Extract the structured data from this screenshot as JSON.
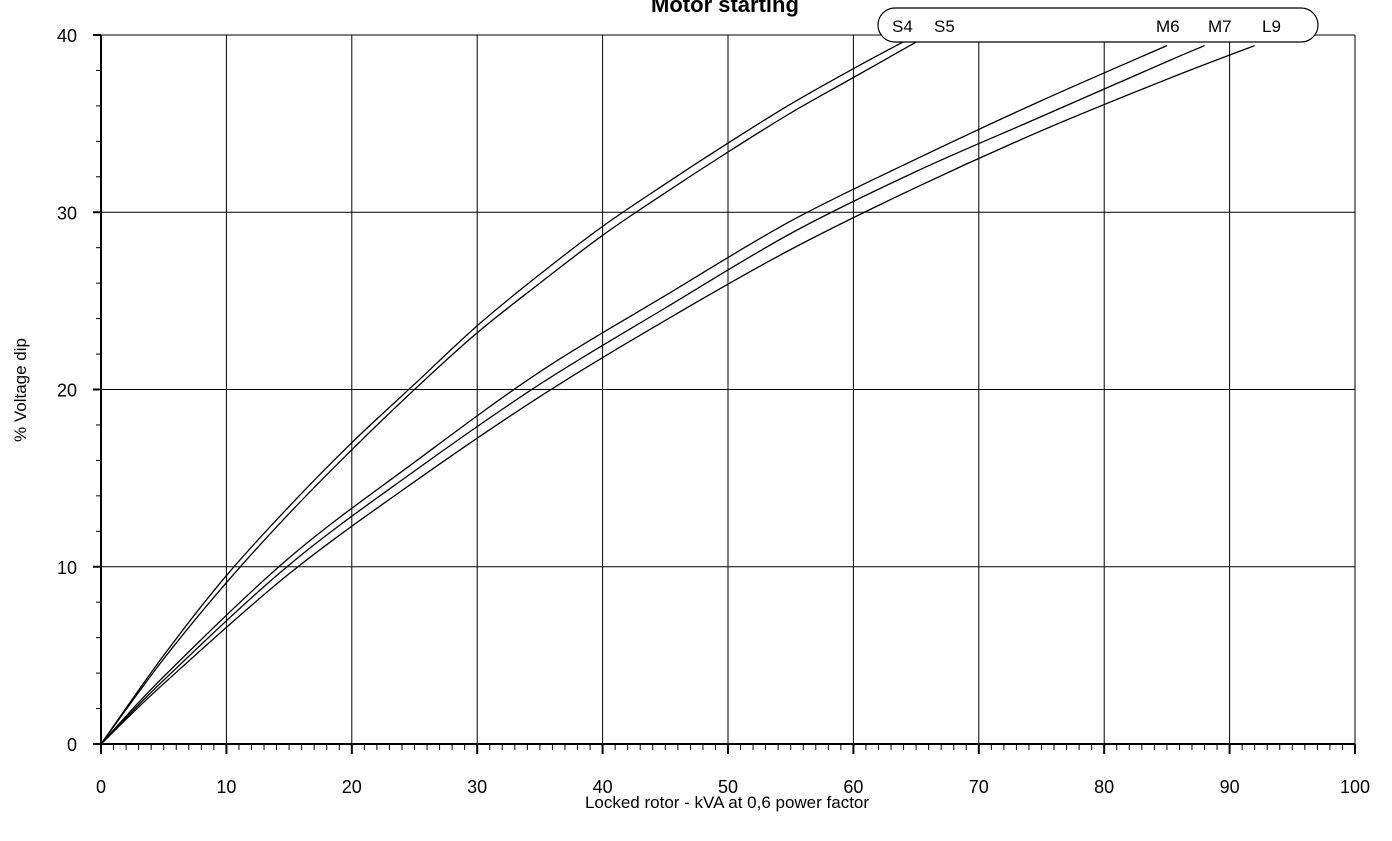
{
  "chart_data": {
    "type": "line",
    "title": "Motor starting",
    "xlabel": "Locked rotor - kVA at 0,6 power factor",
    "ylabel": "% Voltage dip",
    "xlim": [
      0,
      100
    ],
    "ylim": [
      0,
      40
    ],
    "x_ticks": [
      "0",
      "10",
      "20",
      "30",
      "40",
      "50",
      "60",
      "70",
      "80",
      "90",
      "100"
    ],
    "y_ticks": [
      "0",
      "10",
      "20",
      "30",
      "40"
    ],
    "grid": true,
    "legend_position": "top",
    "series": [
      {
        "name": "S4",
        "x": [
          0,
          5,
          10,
          15,
          20,
          25,
          30,
          35,
          40,
          45,
          50,
          55,
          60,
          65
        ],
        "y": [
          0,
          5.0,
          9.5,
          13.4,
          17.0,
          20.3,
          23.6,
          26.5,
          29.2,
          31.6,
          33.9,
          36.1,
          38.1,
          40.0
        ]
      },
      {
        "name": "S5",
        "x": [
          0,
          5,
          10,
          15,
          20,
          25,
          30,
          35,
          40,
          45,
          50,
          55,
          60,
          65
        ],
        "y": [
          0,
          4.8,
          9.1,
          13.0,
          16.6,
          20.0,
          23.2,
          26.0,
          28.7,
          31.1,
          33.4,
          35.6,
          37.6,
          39.6
        ]
      },
      {
        "name": "M6",
        "x": [
          0,
          5,
          15,
          25,
          35,
          45,
          55,
          65,
          75,
          85
        ],
        "y": [
          0,
          3.8,
          10.5,
          15.9,
          21.0,
          25.3,
          29.5,
          33.0,
          36.3,
          39.4
        ]
      },
      {
        "name": "M7",
        "x": [
          0,
          5,
          15,
          25,
          35,
          45,
          55,
          65,
          75,
          85,
          88
        ],
        "y": [
          0,
          3.6,
          10.1,
          15.4,
          20.3,
          24.6,
          28.8,
          32.3,
          35.4,
          38.5,
          39.4
        ]
      },
      {
        "name": "L9",
        "x": [
          0,
          5,
          15,
          25,
          35,
          45,
          55,
          65,
          75,
          85,
          92
        ],
        "y": [
          0,
          3.4,
          9.6,
          14.8,
          19.6,
          23.9,
          27.9,
          31.4,
          34.6,
          37.5,
          39.4
        ]
      }
    ],
    "legend": [
      "S4",
      "S5",
      "M6",
      "M7",
      "L9"
    ]
  }
}
